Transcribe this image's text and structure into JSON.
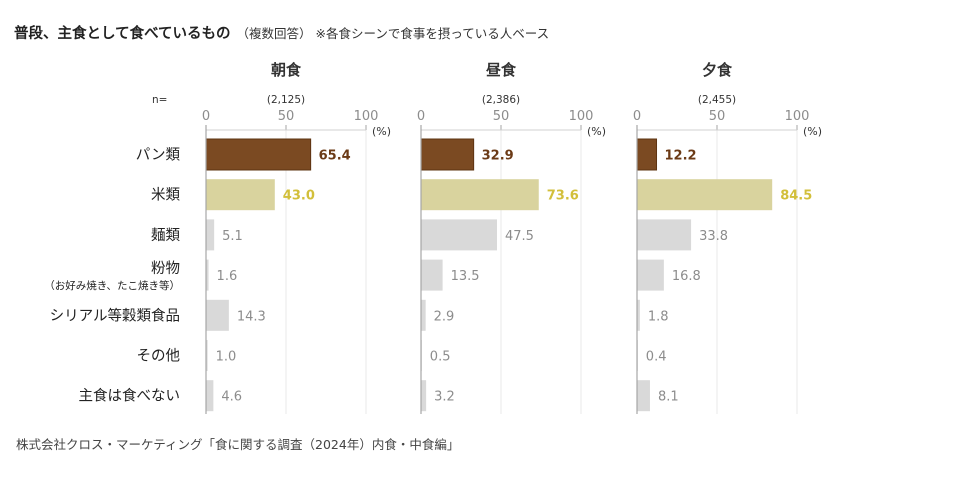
{
  "header": {
    "title": "普段、主食として食べているもの",
    "subtitle": "（複数回答）",
    "note": "※各食シーンで食事を摂っている人ベース"
  },
  "source": "株式会社クロス・マーケティング「食に関する調査（2024年）内食・中食編」",
  "n_label": "n=",
  "axis_unit": "(%)",
  "colors": {
    "highlight1": "#7b4a22",
    "highlight1_text": "#6b3a16",
    "highlight2": "#d9d39e",
    "highlight2_text": "#d2bf3a",
    "other": "#d9d9d9",
    "other_text": "#8c8c8c",
    "grid": "#e8e8e8",
    "axis": "#a6a6a6"
  },
  "chart_data": {
    "type": "bar",
    "orientation": "horizontal",
    "title": "普段、主食として食べているもの（複数回答）",
    "categories": [
      {
        "label": "パン類",
        "sublabel": ""
      },
      {
        "label": "米類",
        "sublabel": ""
      },
      {
        "label": "麺類",
        "sublabel": ""
      },
      {
        "label": "粉物",
        "sublabel": "（お好み焼き、たこ焼き等）"
      },
      {
        "label": "シリアル等穀類食品",
        "sublabel": ""
      },
      {
        "label": "その他",
        "sublabel": ""
      },
      {
        "label": "主食は食べない",
        "sublabel": ""
      }
    ],
    "xlim": [
      0,
      100
    ],
    "xticks": [
      "0",
      "50",
      "100"
    ],
    "xlabel": "(%)",
    "grid": true,
    "panels": [
      {
        "name": "朝食",
        "n": "(2,125)",
        "values": [
          65.4,
          43.0,
          5.1,
          1.6,
          14.3,
          1.0,
          4.6
        ]
      },
      {
        "name": "昼食",
        "n": "(2,386)",
        "values": [
          32.9,
          73.6,
          47.5,
          13.5,
          2.9,
          0.5,
          3.2
        ]
      },
      {
        "name": "夕食",
        "n": "(2,455)",
        "values": [
          12.2,
          84.5,
          33.8,
          16.8,
          1.8,
          0.4,
          8.1
        ]
      }
    ]
  }
}
